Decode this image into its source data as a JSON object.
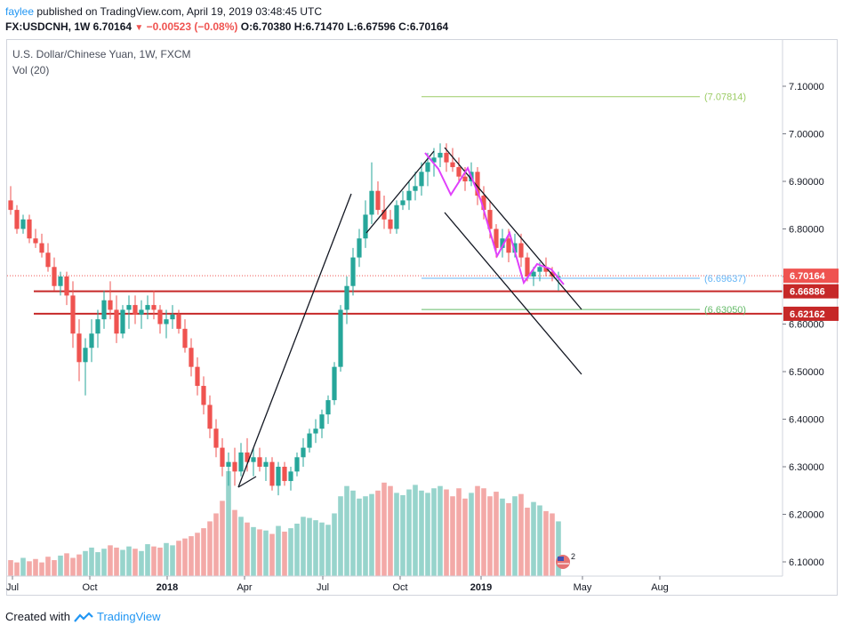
{
  "header": {
    "author": "faylee",
    "published": "published on TradingView.com, April 19, 2019 03:48:45 UTC",
    "symbol": "FX:USDCNH, 1W 6.70164",
    "change_icon": "down-triangle-icon",
    "change": "−0.00523 (−0.08%)",
    "ohlc": "O:6.70380 H:6.71470 L:6.67596 C:6.70164"
  },
  "legend": {
    "title": "U.S. Dollar/Chinese Yuan, 1W, FXCM",
    "volume": "Vol (20)"
  },
  "footer": {
    "created_with": "Created with",
    "brand": "TradingView",
    "logo_icon": "tradingview-logo-icon"
  },
  "colors": {
    "up": "#26a69a",
    "down": "#ef5350",
    "up_volume": "#97d4cc",
    "down_volume": "#f3a9a7",
    "hline": "#c62828",
    "pattern": "#e040fb",
    "fib_upper": "#9ccc65",
    "fib_lower": "#66bb6a",
    "fib_mid": "#64b5f6",
    "last_price_bg": "#ef5350"
  },
  "flag_badge": {
    "icon": "us-flag-event-icon",
    "count": "2"
  },
  "chart_data": {
    "type": "candlestick",
    "title": "U.S. Dollar/Chinese Yuan, 1W, FXCM",
    "ylim": [
      6.05,
      7.16
    ],
    "y_ticks": [
      "7.10000",
      "7.00000",
      "6.90000",
      "6.80000",
      "6.70000",
      "6.60000",
      "6.50000",
      "6.40000",
      "6.30000",
      "6.20000",
      "6.10000"
    ],
    "x_labels": [
      "Jul",
      "Oct",
      "2018",
      "Apr",
      "Jul",
      "Oct",
      "2019",
      "May",
      "Aug"
    ],
    "price_labels": [
      {
        "label": "6.70164",
        "value": 6.70164,
        "style": "last"
      },
      {
        "label": "6.66886",
        "value": 6.66886,
        "style": "level"
      },
      {
        "label": "6.62162",
        "value": 6.62162,
        "style": "level"
      }
    ],
    "fib_labels": [
      {
        "label": "(7.07814)",
        "value": 7.07814,
        "style": "upper"
      },
      {
        "label": "(6.69637)",
        "value": 6.69637,
        "style": "mid"
      },
      {
        "label": "(6.63050)",
        "value": 6.6305,
        "style": "lower"
      }
    ],
    "horizontal_levels": [
      6.66886,
      6.62162
    ],
    "candles": [
      [
        6.86,
        6.89,
        6.83,
        6.84
      ],
      [
        6.84,
        6.85,
        6.79,
        6.8
      ],
      [
        6.8,
        6.83,
        6.79,
        6.82
      ],
      [
        6.82,
        6.83,
        6.77,
        6.78
      ],
      [
        6.78,
        6.8,
        6.76,
        6.77
      ],
      [
        6.77,
        6.79,
        6.74,
        6.75
      ],
      [
        6.75,
        6.77,
        6.71,
        6.72
      ],
      [
        6.72,
        6.74,
        6.67,
        6.68
      ],
      [
        6.68,
        6.71,
        6.66,
        6.7
      ],
      [
        6.7,
        6.71,
        6.64,
        6.66
      ],
      [
        6.66,
        6.69,
        6.55,
        6.58
      ],
      [
        6.58,
        6.61,
        6.48,
        6.52
      ],
      [
        6.52,
        6.57,
        6.45,
        6.55
      ],
      [
        6.55,
        6.61,
        6.52,
        6.58
      ],
      [
        6.58,
        6.63,
        6.55,
        6.61
      ],
      [
        6.61,
        6.67,
        6.59,
        6.65
      ],
      [
        6.65,
        6.69,
        6.61,
        6.63
      ],
      [
        6.63,
        6.66,
        6.56,
        6.58
      ],
      [
        6.58,
        6.64,
        6.57,
        6.63
      ],
      [
        6.63,
        6.66,
        6.59,
        6.64
      ],
      [
        6.64,
        6.66,
        6.6,
        6.62
      ],
      [
        6.62,
        6.65,
        6.59,
        6.63
      ],
      [
        6.63,
        6.66,
        6.61,
        6.64
      ],
      [
        6.64,
        6.67,
        6.61,
        6.63
      ],
      [
        6.63,
        6.64,
        6.58,
        6.6
      ],
      [
        6.6,
        6.63,
        6.57,
        6.61
      ],
      [
        6.61,
        6.64,
        6.59,
        6.62
      ],
      [
        6.62,
        6.63,
        6.58,
        6.59
      ],
      [
        6.59,
        6.61,
        6.54,
        6.55
      ],
      [
        6.55,
        6.57,
        6.49,
        6.51
      ],
      [
        6.51,
        6.53,
        6.45,
        6.47
      ],
      [
        6.47,
        6.49,
        6.41,
        6.43
      ],
      [
        6.43,
        6.45,
        6.36,
        6.38
      ],
      [
        6.38,
        6.4,
        6.32,
        6.34
      ],
      [
        6.34,
        6.36,
        6.28,
        6.3
      ],
      [
        6.3,
        6.33,
        6.26,
        6.31
      ],
      [
        6.31,
        6.34,
        6.26,
        6.29
      ],
      [
        6.29,
        6.35,
        6.28,
        6.33
      ],
      [
        6.33,
        6.36,
        6.29,
        6.31
      ],
      [
        6.31,
        6.34,
        6.28,
        6.32
      ],
      [
        6.32,
        6.34,
        6.29,
        6.3
      ],
      [
        6.3,
        6.32,
        6.27,
        6.31
      ],
      [
        6.31,
        6.32,
        6.25,
        6.26
      ],
      [
        6.26,
        6.31,
        6.24,
        6.3
      ],
      [
        6.3,
        6.31,
        6.26,
        6.27
      ],
      [
        6.27,
        6.3,
        6.25,
        6.29
      ],
      [
        6.29,
        6.33,
        6.28,
        6.32
      ],
      [
        6.32,
        6.36,
        6.3,
        6.34
      ],
      [
        6.34,
        6.38,
        6.33,
        6.37
      ],
      [
        6.37,
        6.4,
        6.35,
        6.38
      ],
      [
        6.38,
        6.42,
        6.36,
        6.41
      ],
      [
        6.41,
        6.45,
        6.39,
        6.44
      ],
      [
        6.44,
        6.52,
        6.43,
        6.51
      ],
      [
        6.51,
        6.64,
        6.5,
        6.63
      ],
      [
        6.63,
        6.7,
        6.6,
        6.68
      ],
      [
        6.68,
        6.76,
        6.66,
        6.74
      ],
      [
        6.74,
        6.8,
        6.72,
        6.78
      ],
      [
        6.78,
        6.86,
        6.76,
        6.83
      ],
      [
        6.83,
        6.94,
        6.81,
        6.88
      ],
      [
        6.88,
        6.9,
        6.83,
        6.84
      ],
      [
        6.84,
        6.87,
        6.8,
        6.82
      ],
      [
        6.82,
        6.84,
        6.79,
        6.8
      ],
      [
        6.8,
        6.86,
        6.79,
        6.85
      ],
      [
        6.85,
        6.88,
        6.84,
        6.86
      ],
      [
        6.86,
        6.9,
        6.84,
        6.88
      ],
      [
        6.88,
        6.92,
        6.86,
        6.89
      ],
      [
        6.89,
        6.94,
        6.87,
        6.92
      ],
      [
        6.92,
        6.96,
        6.89,
        6.94
      ],
      [
        6.94,
        6.97,
        6.91,
        6.95
      ],
      [
        6.95,
        6.98,
        6.93,
        6.96
      ],
      [
        6.96,
        6.98,
        6.92,
        6.94
      ],
      [
        6.94,
        6.97,
        6.92,
        6.93
      ],
      [
        6.93,
        6.95,
        6.9,
        6.91
      ],
      [
        6.91,
        6.93,
        6.88,
        6.9
      ],
      [
        6.9,
        6.94,
        6.89,
        6.92
      ],
      [
        6.92,
        6.93,
        6.85,
        6.87
      ],
      [
        6.87,
        6.89,
        6.82,
        6.84
      ],
      [
        6.84,
        6.86,
        6.78,
        6.8
      ],
      [
        6.8,
        6.81,
        6.74,
        6.76
      ],
      [
        6.76,
        6.8,
        6.74,
        6.78
      ],
      [
        6.78,
        6.8,
        6.73,
        6.75
      ],
      [
        6.75,
        6.79,
        6.74,
        6.77
      ],
      [
        6.77,
        6.79,
        6.72,
        6.74
      ],
      [
        6.74,
        6.75,
        6.69,
        6.7
      ],
      [
        6.7,
        6.72,
        6.68,
        6.71
      ],
      [
        6.71,
        6.73,
        6.69,
        6.72
      ],
      [
        6.72,
        6.74,
        6.7,
        6.71
      ],
      [
        6.71,
        6.72,
        6.69,
        6.7
      ],
      [
        6.7,
        6.71,
        6.67,
        6.7
      ]
    ],
    "volumes": [
      14,
      12,
      16,
      13,
      15,
      12,
      17,
      14,
      18,
      20,
      16,
      19,
      22,
      25,
      21,
      24,
      27,
      25,
      23,
      26,
      24,
      22,
      28,
      26,
      25,
      29,
      27,
      31,
      33,
      35,
      38,
      42,
      48,
      55,
      66,
      92,
      58,
      52,
      47,
      43,
      41,
      40,
      37,
      44,
      39,
      42,
      46,
      52,
      51,
      49,
      47,
      45,
      55,
      70,
      79,
      75,
      68,
      70,
      72,
      75,
      82,
      79,
      73,
      71,
      76,
      80,
      75,
      73,
      77,
      79,
      76,
      70,
      77,
      68,
      73,
      79,
      77,
      70,
      74,
      68,
      64,
      70,
      72,
      60,
      65,
      62,
      57,
      55,
      48
    ]
  }
}
